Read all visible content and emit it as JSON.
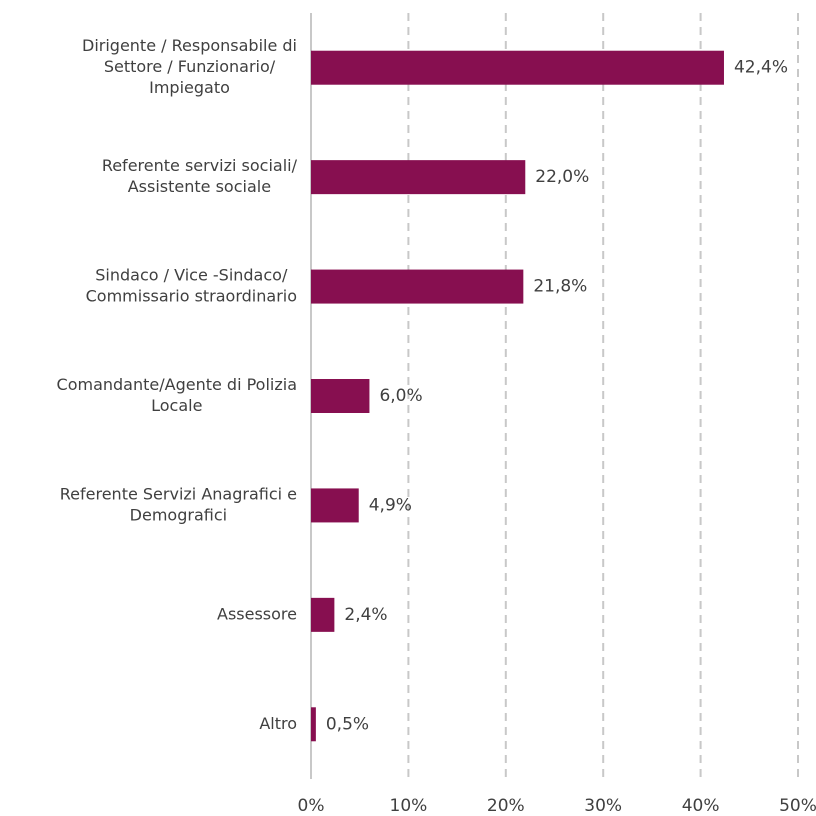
{
  "chart_data": {
    "type": "bar",
    "orientation": "horizontal",
    "categories": [
      [
        "Dirigente / Responsabile di",
        "Settore / Funzionario/",
        "Impiegato"
      ],
      [
        "Referente servizi sociali/",
        "Assistente sociale"
      ],
      [
        "Sindaco / Vice -Sindaco/",
        "Commissario straordinario"
      ],
      [
        "Comandante/Agente di Polizia",
        "Locale"
      ],
      [
        "Referente Servizi Anagrafici e",
        "Demografici"
      ],
      [
        "Assessore"
      ],
      [
        "Altro"
      ]
    ],
    "values": [
      42.4,
      22.0,
      21.8,
      6.0,
      4.9,
      2.4,
      0.5
    ],
    "value_labels": [
      "42,4%",
      "22,0%",
      "21,8%",
      "6,0%",
      "4,9%",
      "2,4%",
      "0,5%"
    ],
    "color": "#870f50",
    "xlim": [
      0,
      50
    ],
    "xticks": [
      {
        "value": 0,
        "label": "0%"
      },
      {
        "value": 10,
        "label": "10%"
      },
      {
        "value": 20,
        "label": "20%"
      },
      {
        "value": 30,
        "label": "30%"
      },
      {
        "value": 40,
        "label": "40%"
      },
      {
        "value": 50,
        "label": "50%"
      }
    ],
    "grid": true
  }
}
